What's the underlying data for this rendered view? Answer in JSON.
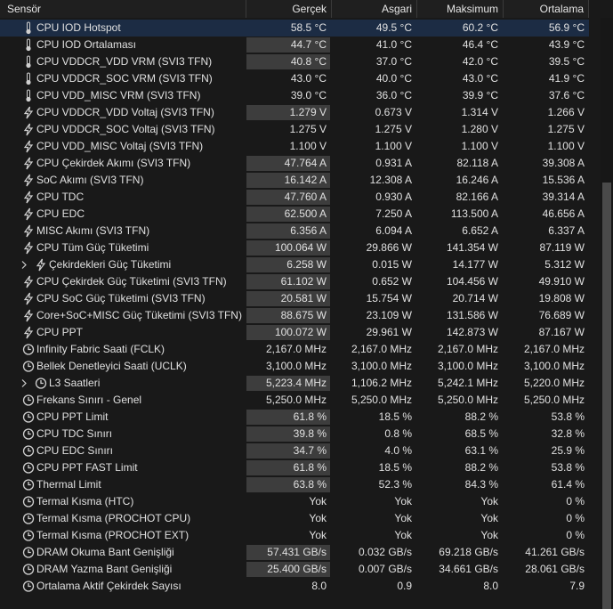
{
  "table": {
    "columns": [
      "Sensör",
      "Gerçek",
      "Asgari",
      "Maksimum",
      "Ortalama"
    ],
    "selected_row": 0,
    "highlighted_rows": [
      1,
      2,
      5,
      8,
      9,
      10,
      11,
      12,
      13,
      14,
      15,
      16,
      17,
      18,
      21,
      23,
      24,
      25,
      26,
      27,
      31,
      32
    ],
    "rows": [
      [
        "CPU IOD Hotspot",
        "58.5 °C",
        "49.5 °C",
        "60.2 °C",
        "56.9 °C"
      ],
      [
        "CPU IOD Ortalaması",
        "44.7 °C",
        "41.0 °C",
        "46.4 °C",
        "43.9 °C"
      ],
      [
        "CPU VDDCR_VDD VRM (SVI3 TFN)",
        "40.8 °C",
        "37.0 °C",
        "42.0 °C",
        "39.5 °C"
      ],
      [
        "CPU VDDCR_SOC VRM (SVI3 TFN)",
        "43.0 °C",
        "40.0 °C",
        "43.0 °C",
        "41.9 °C"
      ],
      [
        "CPU VDD_MISC VRM (SVI3 TFN)",
        "39.0 °C",
        "36.0 °C",
        "39.9 °C",
        "37.6 °C"
      ],
      [
        "CPU VDDCR_VDD Voltaj (SVI3 TFN)",
        "1.279 V",
        "0.673 V",
        "1.314 V",
        "1.266 V"
      ],
      [
        "CPU VDDCR_SOC Voltaj (SVI3 TFN)",
        "1.275 V",
        "1.275 V",
        "1.280 V",
        "1.275 V"
      ],
      [
        "CPU VDD_MISC Voltaj (SVI3 TFN)",
        "1.100 V",
        "1.100 V",
        "1.100 V",
        "1.100 V"
      ],
      [
        "CPU Çekirdek Akımı (SVI3 TFN)",
        "47.764 A",
        "0.931 A",
        "82.118 A",
        "39.308 A"
      ],
      [
        "SoC Akımı (SVI3 TFN)",
        "16.142 A",
        "12.308 A",
        "16.246 A",
        "15.536 A"
      ],
      [
        "CPU TDC",
        "47.760 A",
        "0.930 A",
        "82.166 A",
        "39.314 A"
      ],
      [
        "CPU EDC",
        "62.500 A",
        "7.250 A",
        "113.500 A",
        "46.656 A"
      ],
      [
        "MISC Akımı (SVI3 TFN)",
        "6.356 A",
        "6.094 A",
        "6.652 A",
        "6.337 A"
      ],
      [
        "CPU Tüm Güç Tüketimi",
        "100.064 W",
        "29.866 W",
        "141.354 W",
        "87.119 W"
      ],
      [
        "Çekirdekleri Güç Tüketimi",
        "6.258 W",
        "0.015 W",
        "14.177 W",
        "5.312 W"
      ],
      [
        "CPU Çekirdek Güç Tüketimi (SVI3 TFN)",
        "61.102 W",
        "0.652 W",
        "104.456 W",
        "49.910 W"
      ],
      [
        "CPU SoC Güç Tüketimi (SVI3 TFN)",
        "20.581 W",
        "15.754 W",
        "20.714 W",
        "19.808 W"
      ],
      [
        "Core+SoC+MISC Güç Tüketimi (SVI3 TFN)",
        "88.675 W",
        "23.109 W",
        "131.586 W",
        "76.689 W"
      ],
      [
        "CPU PPT",
        "100.072 W",
        "29.961 W",
        "142.873 W",
        "87.167 W"
      ],
      [
        "Infinity Fabric Saati (FCLK)",
        "2,167.0 MHz",
        "2,167.0 MHz",
        "2,167.0 MHz",
        "2,167.0 MHz"
      ],
      [
        "Bellek Denetleyici Saati (UCLK)",
        "3,100.0 MHz",
        "3,100.0 MHz",
        "3,100.0 MHz",
        "3,100.0 MHz"
      ],
      [
        "L3 Saatleri",
        "5,223.4 MHz",
        "1,106.2 MHz",
        "5,242.1 MHz",
        "5,220.0 MHz"
      ],
      [
        "Frekans Sınırı - Genel",
        "5,250.0 MHz",
        "5,250.0 MHz",
        "5,250.0 MHz",
        "5,250.0 MHz"
      ],
      [
        "CPU PPT Limit",
        "61.8 %",
        "18.5 %",
        "88.2 %",
        "53.8 %"
      ],
      [
        "CPU TDC Sınırı",
        "39.8 %",
        "0.8 %",
        "68.5 %",
        "32.8 %"
      ],
      [
        "CPU EDC Sınırı",
        "34.7 %",
        "4.0 %",
        "63.1 %",
        "25.9 %"
      ],
      [
        "CPU PPT FAST Limit",
        "61.8 %",
        "18.5 %",
        "88.2 %",
        "53.8 %"
      ],
      [
        "Thermal Limit",
        "63.8 %",
        "52.3 %",
        "84.3 %",
        "61.4 %"
      ],
      [
        "Termal Kısma (HTC)",
        "Yok",
        "Yok",
        "Yok",
        "0 %"
      ],
      [
        "Termal Kısma (PROCHOT CPU)",
        "Yok",
        "Yok",
        "Yok",
        "0 %"
      ],
      [
        "Termal Kısma (PROCHOT EXT)",
        "Yok",
        "Yok",
        "Yok",
        "0 %"
      ],
      [
        "DRAM Okuma Bant Genişliği",
        "57.431 GB/s",
        "0.032 GB/s",
        "69.218 GB/s",
        "41.261 GB/s"
      ],
      [
        "DRAM Yazma Bant Genişliği",
        "25.400 GB/s",
        "0.007 GB/s",
        "34.661 GB/s",
        "28.061 GB/s"
      ],
      [
        "Ortalama Aktif Çekirdek Sayısı",
        "8.0",
        "0.9",
        "8.0",
        "7.9"
      ]
    ]
  }
}
